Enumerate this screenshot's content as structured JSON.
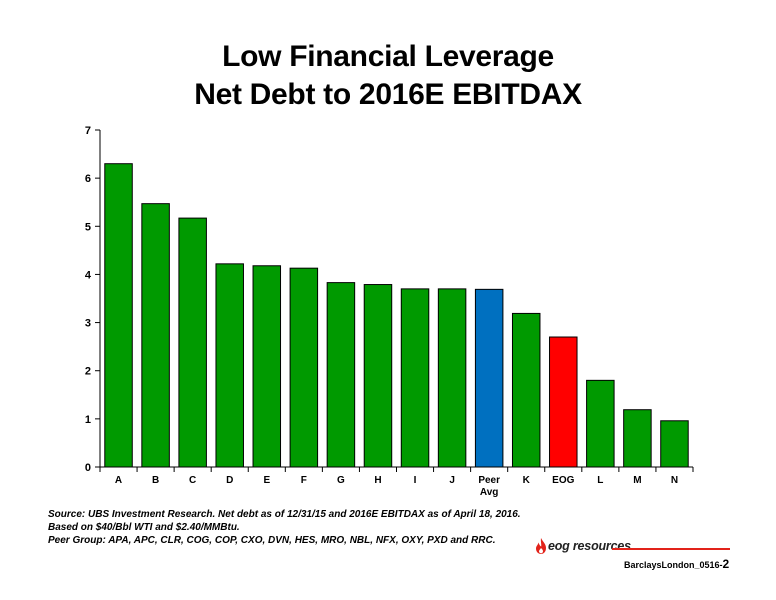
{
  "title": {
    "line1": "Low Financial Leverage",
    "line2": "Net Debt to 2016E EBITDAX"
  },
  "chart_data": {
    "type": "bar",
    "title": "Low Financial Leverage Net Debt to 2016E EBITDAX",
    "categories": [
      "A",
      "B",
      "C",
      "D",
      "E",
      "F",
      "G",
      "H",
      "I",
      "J",
      "Peer\nAvg",
      "K",
      "EOG",
      "L",
      "M",
      "N"
    ],
    "values": [
      6.3,
      5.47,
      5.17,
      4.22,
      4.18,
      4.13,
      3.83,
      3.79,
      3.7,
      3.7,
      3.69,
      3.19,
      2.7,
      1.8,
      1.19,
      0.96
    ],
    "colors": [
      "#009a00",
      "#009a00",
      "#009a00",
      "#009a00",
      "#009a00",
      "#009a00",
      "#009a00",
      "#009a00",
      "#009a00",
      "#009a00",
      "#0070c0",
      "#009a00",
      "#ff0000",
      "#009a00",
      "#009a00",
      "#009a00"
    ],
    "ylim": [
      0,
      7
    ],
    "yticks": [
      "0",
      "1",
      "2",
      "3",
      "4",
      "5",
      "6",
      "7"
    ],
    "xlabel": "",
    "ylabel": "",
    "grid": false,
    "legend": "none"
  },
  "source": {
    "line1": "Source: UBS Investment Research. Net debt as of 12/31/15 and 2016E EBITDAX as of April 18, 2016.",
    "line2": "Based on $40/Bbl WTI and $2.40/MMBtu.",
    "line3": "Peer Group: APA, APC, CLR, COG, COP, CXO, DVN, HES, MRO, NBL, NFX, OXY, PXD and RRC."
  },
  "logo": {
    "text": "eog resources",
    "icon": "flame-icon"
  },
  "footer": {
    "label": "BarclaysLondon_0516-",
    "page": "2"
  }
}
